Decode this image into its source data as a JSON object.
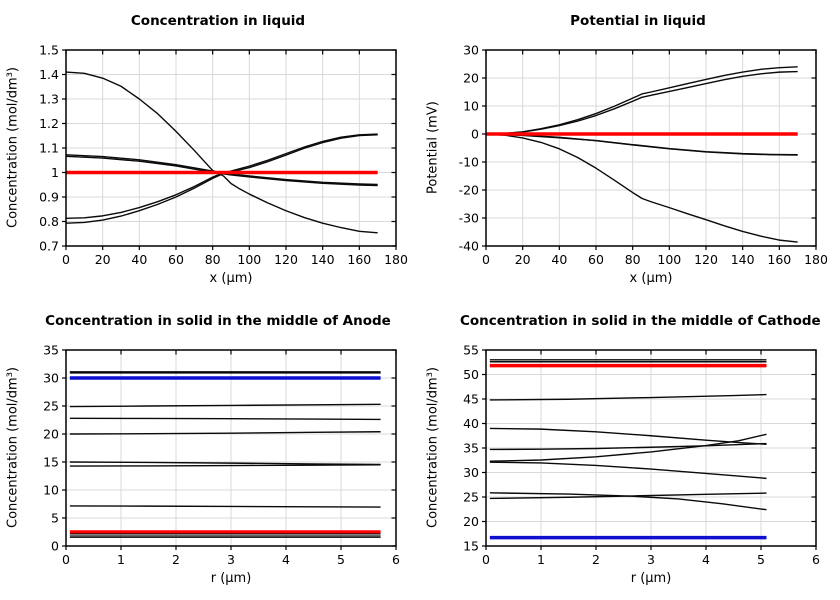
{
  "palette": {
    "curve_black": "#0a0a0a",
    "highlight_red": "#ff0000",
    "highlight_blue": "#0f0fd0",
    "grid": "#d9d9d9",
    "frame": "#000000"
  },
  "chart_data": [
    {
      "type": "line",
      "title": "Concentration in liquid",
      "xlabel": "x (μm)",
      "ylabel": "Concentration (mol/dm³)",
      "xlim": [
        0,
        180
      ],
      "ylim": [
        0.7,
        1.5
      ],
      "grid": true,
      "legend_position": "none",
      "xticks": [
        [
          0,
          "0"
        ],
        [
          20,
          "20"
        ],
        [
          40,
          "40"
        ],
        [
          60,
          "60"
        ],
        [
          80,
          "80"
        ],
        [
          100,
          "100"
        ],
        [
          120,
          "120"
        ],
        [
          140,
          "140"
        ],
        [
          160,
          "160"
        ],
        [
          180,
          "180"
        ]
      ],
      "yticks": [
        [
          0.7,
          "0.7"
        ],
        [
          0.8,
          "0.8"
        ],
        [
          0.9,
          "0.9"
        ],
        [
          1,
          "1"
        ],
        [
          1.1,
          "1.1"
        ],
        [
          1.2,
          "1.2"
        ],
        [
          1.3,
          "1.3"
        ],
        [
          1.4,
          "1.4"
        ],
        [
          1.5,
          "1.5"
        ]
      ],
      "series": [
        {
          "color": "#0a0a0a",
          "width": 1.4,
          "x": [
            0,
            10,
            20,
            30,
            40,
            50,
            60,
            70,
            80,
            83,
            86,
            90,
            95,
            100,
            110,
            120,
            130,
            140,
            150,
            160,
            170
          ],
          "y": [
            1.41,
            1.405,
            1.385,
            1.352,
            1.3,
            1.24,
            1.168,
            1.09,
            1.008,
            0.998,
            0.985,
            0.955,
            0.932,
            0.912,
            0.876,
            0.844,
            0.816,
            0.793,
            0.775,
            0.76,
            0.754
          ]
        },
        {
          "color": "#0a0a0a",
          "width": 1.4,
          "x": [
            0,
            20,
            40,
            60,
            80,
            85,
            90,
            100,
            120,
            140,
            160,
            170
          ],
          "y": [
            1.072,
            1.065,
            1.052,
            1.032,
            1.006,
            0.999,
            0.994,
            0.986,
            0.971,
            0.96,
            0.953,
            0.951
          ]
        },
        {
          "color": "#0a0a0a",
          "width": 1.4,
          "x": [
            0,
            20,
            40,
            60,
            80,
            85,
            90,
            100,
            120,
            140,
            160,
            170
          ],
          "y": [
            1.066,
            1.059,
            1.046,
            1.027,
            1.001,
            0.995,
            0.99,
            0.982,
            0.967,
            0.956,
            0.949,
            0.947
          ]
        },
        {
          "color": "#0a0a0a",
          "width": 1.4,
          "x": [
            0,
            10,
            20,
            30,
            40,
            50,
            60,
            70,
            80,
            85,
            90,
            100,
            110,
            120,
            130,
            140,
            150,
            160,
            170
          ],
          "y": [
            0.813,
            0.815,
            0.823,
            0.837,
            0.857,
            0.881,
            0.909,
            0.943,
            0.981,
            0.997,
            1.006,
            1.026,
            1.05,
            1.077,
            1.104,
            1.127,
            1.144,
            1.154,
            1.157
          ]
        },
        {
          "color": "#0a0a0a",
          "width": 1.4,
          "x": [
            0,
            10,
            20,
            30,
            40,
            50,
            60,
            70,
            80,
            85,
            90,
            100,
            110,
            120,
            130,
            140,
            150,
            160,
            170
          ],
          "y": [
            0.793,
            0.796,
            0.806,
            0.822,
            0.844,
            0.87,
            0.9,
            0.936,
            0.976,
            0.993,
            1.002,
            1.02,
            1.044,
            1.071,
            1.099,
            1.122,
            1.14,
            1.151,
            1.154
          ]
        },
        {
          "color": "#ff0000",
          "width": 3.5,
          "x": [
            0,
            170
          ],
          "y": [
            1,
            1
          ]
        }
      ]
    },
    {
      "type": "line",
      "title": "Potential in liquid",
      "xlabel": "x (μm)",
      "ylabel": "Potential (mV)",
      "xlim": [
        0,
        180
      ],
      "ylim": [
        -40,
        30
      ],
      "grid": true,
      "legend_position": "none",
      "xticks": [
        [
          0,
          "0"
        ],
        [
          20,
          "20"
        ],
        [
          40,
          "40"
        ],
        [
          60,
          "60"
        ],
        [
          80,
          "80"
        ],
        [
          100,
          "100"
        ],
        [
          120,
          "120"
        ],
        [
          140,
          "140"
        ],
        [
          160,
          "160"
        ],
        [
          180,
          "180"
        ]
      ],
      "yticks": [
        [
          -40,
          "-40"
        ],
        [
          -30,
          "-30"
        ],
        [
          -20,
          "-20"
        ],
        [
          -10,
          "-10"
        ],
        [
          0,
          "0"
        ],
        [
          10,
          "10"
        ],
        [
          20,
          "20"
        ],
        [
          30,
          "30"
        ]
      ],
      "series": [
        {
          "color": "#0a0a0a",
          "width": 1.4,
          "x": [
            0,
            10,
            20,
            30,
            40,
            50,
            60,
            70,
            80,
            85,
            90,
            100,
            110,
            120,
            130,
            140,
            150,
            160,
            170
          ],
          "y": [
            0,
            0.2,
            0.8,
            1.9,
            3.3,
            5.1,
            7.3,
            9.9,
            12.8,
            14.3,
            15.0,
            16.5,
            18.0,
            19.5,
            20.9,
            22.1,
            23.1,
            23.7,
            24.0
          ]
        },
        {
          "color": "#0a0a0a",
          "width": 1.4,
          "x": [
            0,
            10,
            20,
            30,
            40,
            50,
            60,
            70,
            80,
            85,
            90,
            100,
            110,
            120,
            130,
            140,
            150,
            160,
            170
          ],
          "y": [
            0,
            0.15,
            0.7,
            1.7,
            3.0,
            4.6,
            6.6,
            9.0,
            11.7,
            13.1,
            13.8,
            15.2,
            16.6,
            18.0,
            19.4,
            20.6,
            21.5,
            22.1,
            22.3
          ]
        },
        {
          "color": "#0a0a0a",
          "width": 1.4,
          "x": [
            0,
            20,
            40,
            60,
            80,
            100,
            120,
            140,
            155,
            170
          ],
          "y": [
            0,
            -0.4,
            -1.2,
            -2.4,
            -3.9,
            -5.3,
            -6.4,
            -7.1,
            -7.4,
            -7.5
          ]
        },
        {
          "color": "#0a0a0a",
          "width": 1.4,
          "x": [
            0,
            20,
            40,
            60,
            80,
            100,
            120,
            140,
            155,
            170
          ],
          "y": [
            0,
            -0.5,
            -1.35,
            -2.35,
            -3.8,
            -5.2,
            -6.3,
            -7.0,
            -7.3,
            -7.4
          ]
        },
        {
          "color": "#0a0a0a",
          "width": 1.4,
          "x": [
            0,
            10,
            20,
            30,
            40,
            50,
            60,
            70,
            80,
            85,
            90,
            100,
            110,
            120,
            130,
            140,
            150,
            160,
            170
          ],
          "y": [
            0,
            -0.4,
            -1.4,
            -3.0,
            -5.3,
            -8.4,
            -12.2,
            -16.5,
            -20.9,
            -23.0,
            -24.2,
            -26.3,
            -28.5,
            -30.6,
            -32.8,
            -34.8,
            -36.5,
            -37.9,
            -38.6
          ]
        },
        {
          "color": "#ff0000",
          "width": 3.5,
          "x": [
            0,
            170
          ],
          "y": [
            0,
            0
          ]
        }
      ]
    },
    {
      "type": "line",
      "title": "Concentration in solid in the middle of Anode",
      "xlabel": "r (μm)",
      "ylabel": "Concentration (mol/dm³)",
      "xlim": [
        0,
        6
      ],
      "ylim": [
        0,
        35
      ],
      "grid": true,
      "legend_position": "none",
      "xticks": [
        [
          0,
          "0"
        ],
        [
          1,
          "1"
        ],
        [
          2,
          "2"
        ],
        [
          3,
          "3"
        ],
        [
          4,
          "4"
        ],
        [
          5,
          "5"
        ],
        [
          6,
          "6"
        ]
      ],
      "yticks": [
        [
          0,
          "0"
        ],
        [
          5,
          "5"
        ],
        [
          10,
          "10"
        ],
        [
          15,
          "15"
        ],
        [
          20,
          "20"
        ],
        [
          25,
          "25"
        ],
        [
          30,
          "30"
        ],
        [
          35,
          "35"
        ]
      ],
      "series": [
        {
          "color": "#0a0a0a",
          "width": 1.4,
          "x": [
            0.07,
            5.72
          ],
          "y": [
            31.1,
            31.1
          ]
        },
        {
          "color": "#0a0a0a",
          "width": 1.4,
          "x": [
            0.07,
            5.72
          ],
          "y": [
            30.9,
            30.9
          ]
        },
        {
          "color": "#0f0fd0",
          "width": 3.5,
          "x": [
            0.07,
            5.72
          ],
          "y": [
            30.0,
            30.0
          ]
        },
        {
          "color": "#0a0a0a",
          "width": 1.4,
          "x": [
            0.07,
            1.5,
            3,
            4.5,
            5.72
          ],
          "y": [
            24.9,
            25.0,
            25.1,
            25.22,
            25.3
          ]
        },
        {
          "color": "#0a0a0a",
          "width": 1.4,
          "x": [
            0.07,
            1.5,
            3,
            4.5,
            5.72
          ],
          "y": [
            22.8,
            22.78,
            22.73,
            22.66,
            22.6
          ]
        },
        {
          "color": "#0a0a0a",
          "width": 1.4,
          "x": [
            0.07,
            1.5,
            3,
            4.5,
            5.72
          ],
          "y": [
            20.0,
            20.05,
            20.15,
            20.3,
            20.4
          ]
        },
        {
          "color": "#0a0a0a",
          "width": 1.4,
          "x": [
            0.07,
            1.5,
            3,
            4.5,
            5.72
          ],
          "y": [
            15.0,
            14.93,
            14.8,
            14.65,
            14.57
          ]
        },
        {
          "color": "#0a0a0a",
          "width": 1.4,
          "x": [
            0.07,
            1.5,
            3,
            4.5,
            5.72
          ],
          "y": [
            14.27,
            14.3,
            14.36,
            14.44,
            14.5
          ]
        },
        {
          "color": "#0a0a0a",
          "width": 1.4,
          "x": [
            0.07,
            1.5,
            3,
            4.5,
            5.72
          ],
          "y": [
            7.15,
            7.12,
            7.07,
            7.0,
            6.95
          ]
        },
        {
          "color": "#ff0000",
          "width": 3.5,
          "x": [
            0.07,
            5.72
          ],
          "y": [
            2.5,
            2.5
          ]
        },
        {
          "color": "#0a0a0a",
          "width": 1.2,
          "x": [
            0.07,
            5.72
          ],
          "y": [
            2.15,
            2.15
          ]
        },
        {
          "color": "#0a0a0a",
          "width": 1.2,
          "x": [
            0.07,
            5.72
          ],
          "y": [
            1.8,
            1.8
          ]
        },
        {
          "color": "#0a0a0a",
          "width": 1.2,
          "x": [
            0.07,
            5.72
          ],
          "y": [
            1.55,
            1.55
          ]
        }
      ]
    },
    {
      "type": "line",
      "title": "Concentration in solid in the middle of Cathode",
      "xlabel": "r (μm)",
      "ylabel": "Concentration (mol/dm³)",
      "xlim": [
        0,
        6
      ],
      "ylim": [
        15,
        55
      ],
      "grid": true,
      "legend_position": "none",
      "xticks": [
        [
          0,
          "0"
        ],
        [
          1,
          "1"
        ],
        [
          2,
          "2"
        ],
        [
          3,
          "3"
        ],
        [
          4,
          "4"
        ],
        [
          5,
          "5"
        ],
        [
          6,
          "6"
        ]
      ],
      "yticks": [
        [
          15,
          "15"
        ],
        [
          20,
          "20"
        ],
        [
          25,
          "25"
        ],
        [
          30,
          "30"
        ],
        [
          35,
          "35"
        ],
        [
          40,
          "40"
        ],
        [
          45,
          "45"
        ],
        [
          50,
          "50"
        ],
        [
          55,
          "55"
        ]
      ],
      "series": [
        {
          "color": "#0a0a0a",
          "width": 1.4,
          "x": [
            0.07,
            5.1
          ],
          "y": [
            53.0,
            53.0
          ]
        },
        {
          "color": "#0a0a0a",
          "width": 1.4,
          "x": [
            0.07,
            5.1
          ],
          "y": [
            52.6,
            52.6
          ]
        },
        {
          "color": "#ff0000",
          "width": 3.5,
          "x": [
            0.07,
            5.1
          ],
          "y": [
            51.8,
            51.8
          ]
        },
        {
          "color": "#0a0a0a",
          "width": 1.4,
          "x": [
            0.07,
            1.5,
            3,
            4.5,
            5.1
          ],
          "y": [
            44.8,
            44.95,
            45.3,
            45.7,
            45.9
          ]
        },
        {
          "color": "#0a0a0a",
          "width": 1.4,
          "x": [
            0.07,
            1,
            2,
            3,
            4,
            4.6,
            5.1
          ],
          "y": [
            39.0,
            38.85,
            38.3,
            37.5,
            36.6,
            36.1,
            35.75
          ]
        },
        {
          "color": "#0a0a0a",
          "width": 1.4,
          "x": [
            0.07,
            1,
            2,
            3,
            4,
            5.1
          ],
          "y": [
            34.7,
            34.75,
            34.9,
            35.15,
            35.45,
            35.9
          ]
        },
        {
          "color": "#0a0a0a",
          "width": 1.4,
          "x": [
            0.07,
            1,
            2,
            3,
            4,
            4.6,
            5.1
          ],
          "y": [
            32.3,
            32.55,
            33.2,
            34.2,
            35.5,
            36.5,
            37.8
          ]
        },
        {
          "color": "#0a0a0a",
          "width": 1.4,
          "x": [
            0.07,
            1,
            2,
            3,
            4,
            5.1
          ],
          "y": [
            32.1,
            31.95,
            31.45,
            30.7,
            29.8,
            28.8
          ]
        },
        {
          "color": "#0a0a0a",
          "width": 1.4,
          "x": [
            0.07,
            1.5,
            2.6,
            3.5,
            4.3,
            5.1
          ],
          "y": [
            25.85,
            25.6,
            25.2,
            24.6,
            23.6,
            22.4
          ]
        },
        {
          "color": "#0a0a0a",
          "width": 1.4,
          "x": [
            0.07,
            1.5,
            2.6,
            4,
            5.1
          ],
          "y": [
            24.7,
            24.95,
            25.2,
            25.55,
            25.8
          ]
        },
        {
          "color": "#0f0fd0",
          "width": 3.5,
          "x": [
            0.07,
            5.1
          ],
          "y": [
            16.7,
            16.7
          ]
        }
      ]
    }
  ]
}
